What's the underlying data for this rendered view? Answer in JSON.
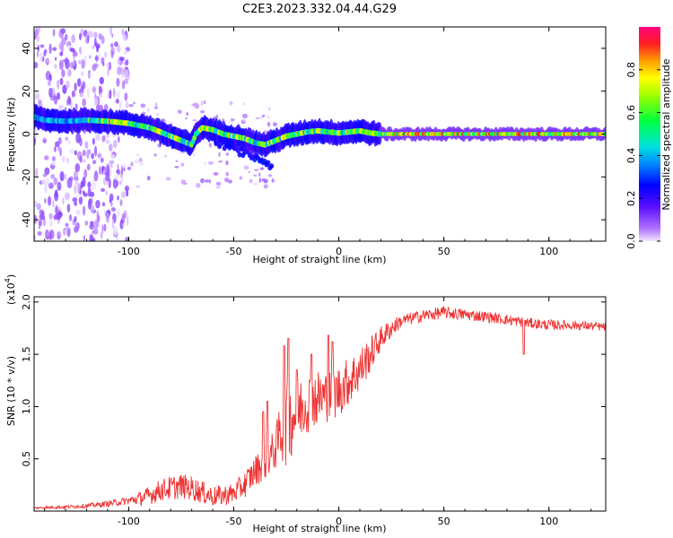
{
  "title": "C2E3.2023.332.04.44.G29",
  "chart_data": [
    {
      "type": "heatmap",
      "xlabel": "Height of straight line (km)",
      "ylabel": "Frequency (Hz)",
      "xlim": [
        -145,
        127
      ],
      "ylim": [
        -50,
        50
      ],
      "xticks": [
        -100,
        -50,
        0,
        50,
        100
      ],
      "xtick_labels": [
        "-100",
        "-50",
        "0",
        "50",
        "100"
      ],
      "yticks": [
        -40,
        -20,
        0,
        20,
        40
      ],
      "ytick_labels": [
        "-40",
        "-20",
        "0",
        "20",
        "40"
      ],
      "colorbar": {
        "label": "Normalized spectral amplitude",
        "range": [
          0,
          1
        ],
        "ticks": [
          0.0,
          0.2,
          0.4,
          0.6,
          0.8
        ],
        "tick_labels": [
          "0.0",
          "0.2",
          "0.4",
          "0.6",
          "0.8"
        ],
        "colormap": "rainbow-violet-to-red"
      },
      "ridge": {
        "x": [
          -145,
          -140,
          -130,
          -120,
          -110,
          -100,
          -95,
          -90,
          -85,
          -80,
          -75,
          -70,
          -68,
          -65,
          -60,
          -55,
          -50,
          -45,
          -40,
          -35,
          -30,
          -25,
          -20,
          -15,
          -10,
          -5,
          0,
          5,
          10,
          15,
          20,
          40,
          60,
          80,
          100,
          127
        ],
        "y": [
          8,
          6.5,
          6,
          6.5,
          6,
          5,
          4,
          3,
          1,
          -1,
          -3,
          -5,
          0,
          3,
          2,
          0,
          -1,
          -2,
          -4,
          -5,
          -3,
          -1,
          0,
          1,
          1.5,
          1,
          0.5,
          1,
          1.5,
          0.5,
          0,
          0,
          0,
          0,
          0,
          0
        ]
      },
      "secondary_branch": {
        "x": [
          -60,
          -55,
          -50,
          -45,
          -40,
          -35,
          -32
        ],
        "y": [
          -3,
          -5,
          -7,
          -9,
          -11,
          -13,
          -15
        ]
      }
    },
    {
      "type": "line",
      "xlabel": "Height of straight line (km)",
      "ylabel": "SNR (10 * v/v)",
      "y_scale_label": "(x10",
      "y_scale_exp": "4",
      "y_scale_close": ")",
      "xlim": [
        -145,
        127
      ],
      "ylim": [
        0,
        2.05
      ],
      "xticks": [
        -100,
        -50,
        0,
        50,
        100
      ],
      "xtick_labels": [
        "-100",
        "-50",
        "0",
        "50",
        "100"
      ],
      "yticks": [
        0.5,
        1.0,
        1.5,
        2.0
      ],
      "ytick_labels": [
        "0.5",
        "1.0",
        "1.5",
        "2.0"
      ],
      "color": "#ee3333",
      "envelope": {
        "x": [
          -145,
          -130,
          -120,
          -110,
          -100,
          -95,
          -90,
          -85,
          -80,
          -75,
          -70,
          -65,
          -60,
          -55,
          -50,
          -45,
          -40,
          -35,
          -30,
          -28,
          -25,
          -22,
          -20,
          -15,
          -10,
          -5,
          0,
          5,
          10,
          15,
          20,
          25,
          30,
          40,
          50,
          60,
          70,
          80,
          90,
          100,
          110,
          120,
          127
        ],
        "y": [
          0.03,
          0.04,
          0.05,
          0.07,
          0.1,
          0.12,
          0.15,
          0.2,
          0.22,
          0.24,
          0.22,
          0.18,
          0.14,
          0.15,
          0.17,
          0.25,
          0.38,
          0.48,
          0.6,
          0.75,
          0.85,
          0.9,
          0.95,
          1.05,
          1.08,
          1.1,
          1.15,
          1.25,
          1.35,
          1.5,
          1.65,
          1.75,
          1.82,
          1.87,
          1.9,
          1.88,
          1.86,
          1.83,
          1.8,
          1.78,
          1.78,
          1.77,
          1.76
        ]
      },
      "noise": {
        "x": [
          -145,
          -120,
          -100,
          -90,
          -80,
          -70,
          -60,
          -50,
          -40,
          -30,
          -25,
          -20,
          -10,
          0,
          10,
          20,
          30,
          50,
          80,
          100,
          127
        ],
        "y": [
          0.01,
          0.02,
          0.04,
          0.09,
          0.12,
          0.12,
          0.1,
          0.1,
          0.15,
          0.2,
          0.42,
          0.32,
          0.28,
          0.25,
          0.22,
          0.12,
          0.06,
          0.06,
          0.05,
          0.05,
          0.04
        ]
      },
      "spikes": [
        {
          "x": -36,
          "y": 0.95
        },
        {
          "x": -34,
          "y": 1.05
        },
        {
          "x": -26,
          "y": 1.58
        },
        {
          "x": -24,
          "y": 1.65
        },
        {
          "x": -20,
          "y": 1.35
        },
        {
          "x": -13,
          "y": 1.5
        },
        {
          "x": -5,
          "y": 1.68
        },
        {
          "x": -3,
          "y": 1.62
        },
        {
          "x": 88,
          "y": 1.5
        }
      ]
    }
  ]
}
